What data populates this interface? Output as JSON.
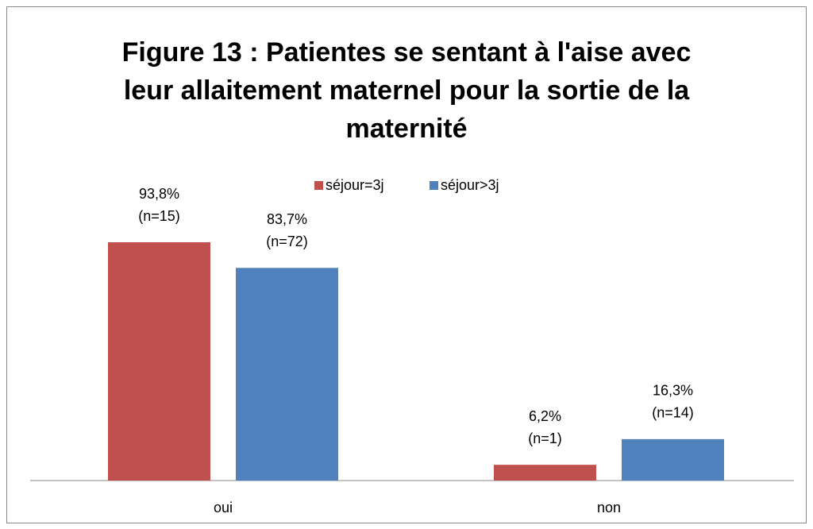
{
  "chart_data": {
    "type": "bar",
    "title": [
      "Figure 13 : Patientes se sentant à l'aise avec",
      "leur allaitement maternel pour la sortie de la",
      "maternité"
    ],
    "categories": [
      "oui",
      "non"
    ],
    "series": [
      {
        "name": "séjour=3j",
        "color": "#c0504d",
        "values": [
          93.8,
          6.2
        ],
        "value_labels": [
          [
            "93,8%",
            "(n=15)"
          ],
          [
            "6,2%",
            "(n=1)"
          ]
        ]
      },
      {
        "name": "séjour>3j",
        "color": "#4f81bd",
        "values": [
          83.7,
          16.3
        ],
        "value_labels": [
          [
            "83,7%",
            "(n=72)"
          ],
          [
            "16,3%",
            "(n=14)"
          ]
        ]
      }
    ],
    "legend": "top"
  }
}
